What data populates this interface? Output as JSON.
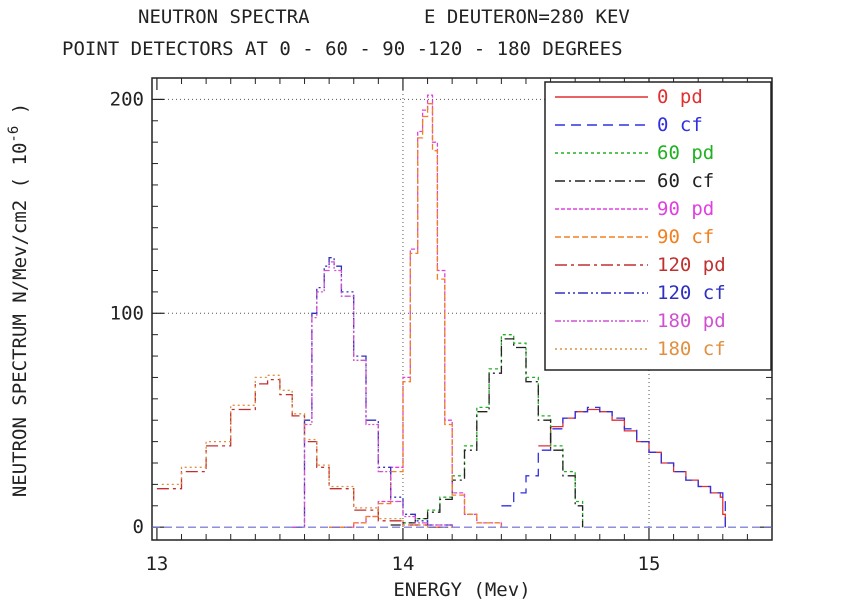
{
  "chart_data": {
    "type": "line",
    "title": "NEUTRON SPECTRA          E DEUTERON=280 KEV",
    "subtitle": "POINT DETECTORS AT 0 - 60 - 90 -120 - 180 DEGREES",
    "xlabel": "ENERGY (Mev)",
    "ylabel": "NEUTRON SPECTRUM  N/Mev/cm2 ( 10",
    "ylabel_exponent": "-6",
    "ylabel_close": " )",
    "xlim": [
      12.98,
      15.5
    ],
    "ylim": [
      -6,
      210
    ],
    "x_ticks": [
      13,
      14,
      15
    ],
    "x_tick_labels": [
      "13",
      "14",
      "15"
    ],
    "y_ticks": [
      0,
      100,
      200
    ],
    "y_tick_labels": [
      "0",
      "100",
      "200"
    ],
    "grid": "dotted at major ticks",
    "legend_position": "top-right",
    "series": [
      {
        "name": "0 pd",
        "color": "#e03030",
        "dash": "none",
        "x": [
          14.55,
          14.6,
          14.65,
          14.7,
          14.75,
          14.8,
          14.85,
          14.9,
          14.95,
          15.0,
          15.05,
          15.1,
          15.15,
          15.2,
          15.25,
          15.29,
          15.3,
          15.31
        ],
        "y": [
          38,
          47,
          51,
          54,
          55,
          54,
          50,
          45,
          40,
          35,
          30,
          26,
          22,
          19,
          16,
          14,
          6,
          0
        ]
      },
      {
        "name": "0 cf",
        "color": "#3030e0",
        "dash": "10,6",
        "x": [
          14.4,
          14.45,
          14.5,
          14.55,
          14.6,
          14.65,
          14.7,
          14.75,
          14.8,
          14.85,
          14.9,
          14.95,
          15.0,
          15.05,
          15.1,
          15.15,
          15.2,
          15.25,
          15.3,
          15.31
        ],
        "y": [
          10,
          16,
          24,
          36,
          46,
          51,
          54,
          56,
          54,
          51,
          46,
          40,
          35,
          30,
          26,
          22,
          19,
          16,
          14,
          0
        ]
      },
      {
        "name": "60 pd",
        "color": "#20b020",
        "dash": "3,3",
        "x": [
          14.0,
          14.05,
          14.1,
          14.15,
          14.2,
          14.25,
          14.3,
          14.35,
          14.4,
          14.45,
          14.5,
          14.55,
          14.6,
          14.65,
          14.7,
          14.73
        ],
        "y": [
          2,
          4,
          8,
          14,
          24,
          38,
          56,
          74,
          90,
          86,
          70,
          52,
          38,
          26,
          12,
          0
        ]
      },
      {
        "name": "60 cf",
        "color": "#222222",
        "dash": "10,4,2,4",
        "x": [
          13.95,
          14.0,
          14.05,
          14.1,
          14.15,
          14.2,
          14.25,
          14.3,
          14.35,
          14.4,
          14.45,
          14.5,
          14.55,
          14.6,
          14.65,
          14.7,
          14.73
        ],
        "y": [
          1,
          2,
          4,
          7,
          13,
          22,
          36,
          54,
          72,
          88,
          84,
          68,
          50,
          36,
          24,
          10,
          0
        ]
      },
      {
        "name": "90 pd",
        "color": "#e040e0",
        "dash": "4,2",
        "x": [
          13.7,
          13.8,
          13.85,
          13.9,
          13.95,
          14.0,
          14.03,
          14.06,
          14.08,
          14.1,
          14.12,
          14.14,
          14.17,
          14.2,
          14.25,
          14.3,
          14.4
        ],
        "y": [
          0,
          2,
          5,
          12,
          28,
          70,
          130,
          185,
          195,
          202,
          180,
          120,
          50,
          16,
          6,
          2,
          0
        ]
      },
      {
        "name": "90 cf",
        "color": "#f08020",
        "dash": "6,3",
        "x": [
          13.7,
          13.8,
          13.85,
          13.9,
          13.95,
          14.0,
          14.03,
          14.06,
          14.08,
          14.1,
          14.12,
          14.14,
          14.17,
          14.2,
          14.25,
          14.3,
          14.4
        ],
        "y": [
          0,
          2,
          5,
          11,
          26,
          68,
          128,
          182,
          192,
          198,
          176,
          116,
          48,
          15,
          6,
          2,
          0
        ]
      },
      {
        "name": "120 pd",
        "color": "#c03030",
        "dash": "12,4,3,4",
        "x": [
          13.0,
          13.1,
          13.2,
          13.3,
          13.4,
          13.45,
          13.5,
          13.55,
          13.6,
          13.65,
          13.7,
          13.8,
          13.9,
          14.0,
          14.1,
          14.2
        ],
        "y": [
          18,
          26,
          38,
          55,
          67,
          69,
          62,
          52,
          40,
          28,
          18,
          8,
          3,
          1,
          0,
          0
        ]
      },
      {
        "name": "120 cf",
        "color": "#3030c0",
        "dash": "10,3,2,3,2,3",
        "x": [
          13.55,
          13.6,
          13.63,
          13.65,
          13.68,
          13.7,
          13.72,
          13.75,
          13.8,
          13.85,
          13.9,
          13.95,
          14.0,
          14.05,
          14.1,
          14.2
        ],
        "y": [
          0,
          50,
          100,
          112,
          122,
          126,
          122,
          110,
          80,
          50,
          28,
          14,
          6,
          3,
          1,
          0
        ]
      },
      {
        "name": "180 pd",
        "color": "#d050d0",
        "dash": "6,2,2,2,2,2",
        "x": [
          13.55,
          13.6,
          13.63,
          13.65,
          13.68,
          13.7,
          13.72,
          13.75,
          13.8,
          13.85,
          13.9,
          13.95,
          14.0,
          14.05,
          14.1,
          14.2
        ],
        "y": [
          0,
          48,
          98,
          110,
          120,
          124,
          120,
          108,
          78,
          48,
          26,
          12,
          5,
          2,
          1,
          0
        ]
      },
      {
        "name": "180 cf",
        "color": "#e09040",
        "dash": "2,3",
        "x": [
          13.02,
          13.1,
          13.2,
          13.3,
          13.4,
          13.45,
          13.5,
          13.55,
          13.6,
          13.65,
          13.7,
          13.8,
          13.9,
          14.0,
          14.1,
          14.2
        ],
        "y": [
          20,
          28,
          40,
          57,
          70,
          71,
          64,
          53,
          41,
          29,
          19,
          9,
          4,
          1,
          0,
          0
        ]
      }
    ]
  }
}
